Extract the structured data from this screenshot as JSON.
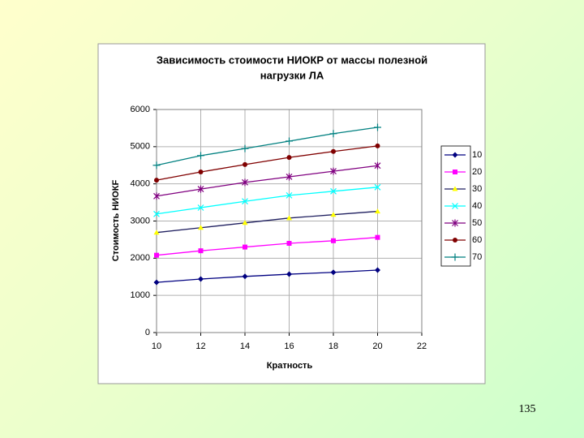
{
  "chart_data": {
    "type": "line",
    "title": [
      "Зависимость стоимости НИОКР  от массы полезной",
      "нагрузки ЛА"
    ],
    "x_label": "Кратность",
    "y_label": "Стоимость НИОКF",
    "x": [
      10,
      12,
      14,
      16,
      18,
      20
    ],
    "xlim": [
      10,
      22
    ],
    "xticks": [
      10,
      12,
      14,
      16,
      18,
      20,
      22
    ],
    "ylim": [
      0,
      6000
    ],
    "yticks": [
      0,
      1000,
      2000,
      3000,
      4000,
      5000,
      6000
    ],
    "grid": true,
    "legend": "right",
    "series": [
      {
        "name": "10",
        "color": "#000080",
        "marker_color": "#000080",
        "marker": "diamond",
        "values": [
          1350,
          1440,
          1510,
          1570,
          1620,
          1680
        ]
      },
      {
        "name": "20",
        "color": "#ff00ff",
        "marker_color": "#ff00ff",
        "marker": "square",
        "values": [
          2080,
          2200,
          2300,
          2400,
          2470,
          2560
        ]
      },
      {
        "name": "30",
        "color": "#202060",
        "marker_color": "#ffff00",
        "marker": "triangle",
        "values": [
          2690,
          2820,
          2950,
          3080,
          3170,
          3260
        ]
      },
      {
        "name": "40",
        "color": "#00ffff",
        "marker_color": "#00ffff",
        "marker": "x",
        "values": [
          3190,
          3360,
          3530,
          3690,
          3800,
          3910
        ]
      },
      {
        "name": "50",
        "color": "#800080",
        "marker_color": "#800080",
        "marker": "star",
        "values": [
          3670,
          3860,
          4040,
          4190,
          4340,
          4490
        ]
      },
      {
        "name": "60",
        "color": "#800000",
        "marker_color": "#800000",
        "marker": "circle",
        "values": [
          4100,
          4320,
          4520,
          4710,
          4870,
          5020
        ]
      },
      {
        "name": "70",
        "color": "#008080",
        "marker_color": "#008080",
        "marker": "plus",
        "values": [
          4500,
          4760,
          4950,
          5150,
          5350,
          5520
        ]
      }
    ]
  },
  "page_number": "135"
}
